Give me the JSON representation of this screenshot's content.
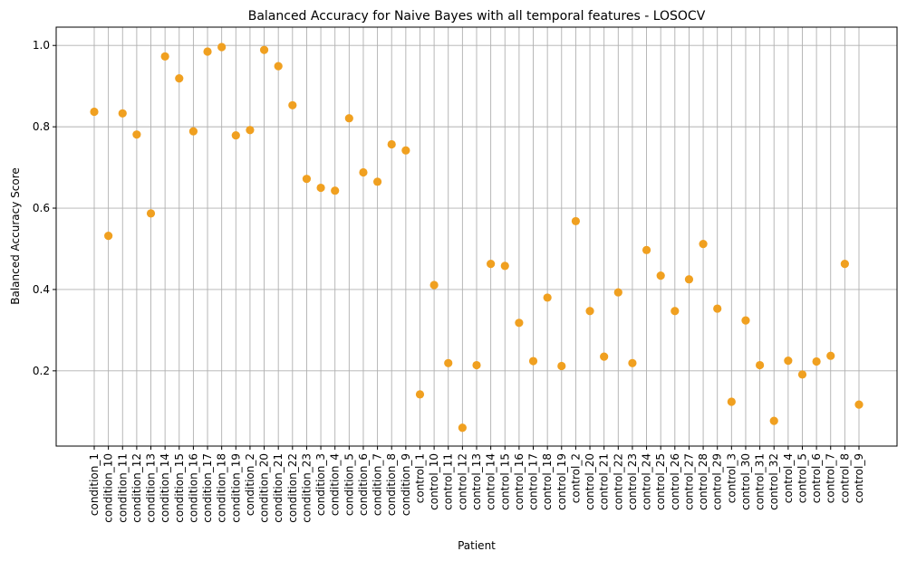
{
  "chart_data": {
    "type": "scatter",
    "title": "Balanced Accuracy for Naive Bayes with all temporal features - LOSOCV",
    "xlabel": "Patient",
    "ylabel": "Balanced Accuracy Score",
    "ylim": [
      0.015,
      1.045
    ],
    "yticks": [
      "0.2",
      "0.4",
      "0.6",
      "0.8",
      "1.0"
    ],
    "grid": true,
    "marker_color": "#f0a020",
    "categories": [
      "condition_1",
      "condition_10",
      "condition_11",
      "condition_12",
      "condition_13",
      "condition_14",
      "condition_15",
      "condition_16",
      "condition_17",
      "condition_18",
      "condition_19",
      "condition_2",
      "condition_20",
      "condition_21",
      "condition_22",
      "condition_23",
      "condition_3",
      "condition_4",
      "condition_5",
      "condition_6",
      "condition_7",
      "condition_8",
      "condition_9",
      "control_1",
      "control_10",
      "control_11",
      "control_12",
      "control_13",
      "control_14",
      "control_15",
      "control_16",
      "control_17",
      "control_18",
      "control_19",
      "control_2",
      "control_20",
      "control_21",
      "control_22",
      "control_23",
      "control_24",
      "control_25",
      "control_26",
      "control_27",
      "control_28",
      "control_29",
      "control_3",
      "control_30",
      "control_31",
      "control_32",
      "control_4",
      "control_5",
      "control_6",
      "control_7",
      "control_8",
      "control_9"
    ],
    "values": [
      0.837,
      0.532,
      0.833,
      0.781,
      0.587,
      0.973,
      0.919,
      0.789,
      0.985,
      0.996,
      0.779,
      0.792,
      0.989,
      0.949,
      0.853,
      0.672,
      0.65,
      0.643,
      0.821,
      0.688,
      0.665,
      0.757,
      0.742,
      0.142,
      0.411,
      0.219,
      0.06,
      0.214,
      0.463,
      0.458,
      0.318,
      0.224,
      0.38,
      0.212,
      0.568,
      0.347,
      0.235,
      0.393,
      0.219,
      0.497,
      0.434,
      0.347,
      0.425,
      0.512,
      0.353,
      0.124,
      0.324,
      0.214,
      0.077,
      0.225,
      0.191,
      0.223,
      0.237,
      0.463,
      0.117
    ]
  }
}
